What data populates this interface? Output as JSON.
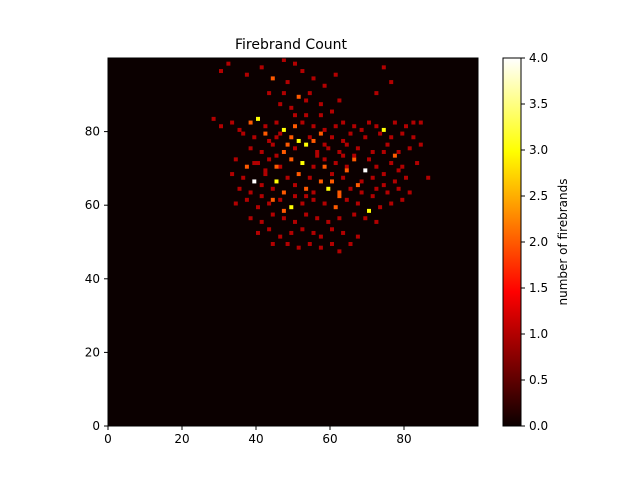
{
  "chart_data": {
    "type": "heatmap",
    "title": "Firebrand Count",
    "xlabel": "",
    "ylabel": "",
    "colorbar_label": "number of firebrands",
    "colormap": "hot",
    "xlim": [
      0,
      100
    ],
    "ylim": [
      0,
      100
    ],
    "grid": false,
    "x_ticks": [
      "0",
      "20",
      "40",
      "60",
      "80"
    ],
    "y_ticks": [
      "0",
      "20",
      "40",
      "60",
      "80"
    ],
    "colorbar_range": [
      0,
      4
    ],
    "colorbar_ticks": [
      "0.0",
      "0.5",
      "1.0",
      "1.5",
      "2.0",
      "2.5",
      "3.0",
      "3.5",
      "4.0"
    ],
    "background_value": 0,
    "cells": [
      [
        32,
        98,
        1
      ],
      [
        30,
        96,
        1
      ],
      [
        47,
        99,
        1
      ],
      [
        50,
        98,
        1
      ],
      [
        41,
        97,
        1
      ],
      [
        37,
        95,
        1
      ],
      [
        44,
        94,
        2
      ],
      [
        48,
        93,
        1
      ],
      [
        52,
        96,
        1
      ],
      [
        55,
        94,
        1
      ],
      [
        58,
        92,
        1
      ],
      [
        61,
        95,
        1
      ],
      [
        43,
        90,
        1
      ],
      [
        47,
        90,
        1
      ],
      [
        51,
        89,
        2
      ],
      [
        54,
        90,
        1
      ],
      [
        46,
        87,
        1
      ],
      [
        49,
        86,
        1
      ],
      [
        53,
        88,
        1
      ],
      [
        57,
        87,
        1
      ],
      [
        62,
        88,
        1
      ],
      [
        74,
        97,
        1
      ],
      [
        76,
        93,
        1
      ],
      [
        72,
        90,
        1
      ],
      [
        28,
        83,
        1
      ],
      [
        30,
        81,
        1
      ],
      [
        33,
        82,
        1
      ],
      [
        35,
        80,
        1
      ],
      [
        38,
        82,
        2
      ],
      [
        40,
        83,
        3
      ],
      [
        42,
        81,
        1
      ],
      [
        45,
        82,
        1
      ],
      [
        47,
        80,
        3
      ],
      [
        50,
        81,
        2
      ],
      [
        52,
        82,
        1
      ],
      [
        55,
        81,
        1
      ],
      [
        58,
        80,
        1
      ],
      [
        61,
        81,
        1
      ],
      [
        63,
        82,
        1
      ],
      [
        66,
        81,
        1
      ],
      [
        68,
        80,
        1
      ],
      [
        70,
        82,
        1
      ],
      [
        72,
        81,
        1
      ],
      [
        74,
        80,
        3
      ],
      [
        77,
        82,
        1
      ],
      [
        80,
        81,
        1
      ],
      [
        82,
        82,
        1
      ],
      [
        84,
        82,
        1
      ],
      [
        36,
        79,
        1
      ],
      [
        39,
        78,
        1
      ],
      [
        43,
        77,
        1
      ],
      [
        46,
        79,
        1
      ],
      [
        49,
        78,
        2
      ],
      [
        51,
        77,
        3
      ],
      [
        54,
        78,
        1
      ],
      [
        57,
        79,
        2
      ],
      [
        60,
        78,
        1
      ],
      [
        63,
        77,
        1
      ],
      [
        65,
        79,
        1
      ],
      [
        69,
        78,
        1
      ],
      [
        73,
        79,
        1
      ],
      [
        76,
        78,
        1
      ],
      [
        79,
        79,
        1
      ],
      [
        82,
        78,
        1
      ],
      [
        38,
        75,
        1
      ],
      [
        41,
        74,
        1
      ],
      [
        44,
        76,
        1
      ],
      [
        47,
        74,
        2
      ],
      [
        50,
        75,
        1
      ],
      [
        53,
        76,
        3
      ],
      [
        56,
        74,
        1
      ],
      [
        59,
        75,
        1
      ],
      [
        62,
        74,
        1
      ],
      [
        64,
        76,
        1
      ],
      [
        67,
        75,
        1
      ],
      [
        71,
        74,
        1
      ],
      [
        75,
        76,
        1
      ],
      [
        78,
        74,
        1
      ],
      [
        81,
        75,
        1
      ],
      [
        84,
        76,
        1
      ],
      [
        34,
        72,
        1
      ],
      [
        37,
        70,
        2
      ],
      [
        40,
        71,
        1
      ],
      [
        43,
        72,
        1
      ],
      [
        46,
        70,
        1
      ],
      [
        49,
        72,
        2
      ],
      [
        52,
        71,
        3
      ],
      [
        55,
        70,
        1
      ],
      [
        58,
        72,
        1
      ],
      [
        61,
        71,
        1
      ],
      [
        64,
        70,
        1
      ],
      [
        66,
        72,
        2
      ],
      [
        69,
        69,
        4
      ],
      [
        72,
        70,
        1
      ],
      [
        76,
        71,
        1
      ],
      [
        79,
        70,
        1
      ],
      [
        83,
        71,
        1
      ],
      [
        86,
        67,
        1
      ],
      [
        33,
        68,
        1
      ],
      [
        36,
        67,
        1
      ],
      [
        39,
        66,
        4
      ],
      [
        42,
        68,
        1
      ],
      [
        45,
        66,
        3
      ],
      [
        48,
        67,
        1
      ],
      [
        51,
        68,
        2
      ],
      [
        54,
        67,
        1
      ],
      [
        57,
        66,
        2
      ],
      [
        60,
        68,
        1
      ],
      [
        63,
        67,
        1
      ],
      [
        68,
        66,
        1
      ],
      [
        71,
        67,
        1
      ],
      [
        74,
        68,
        1
      ],
      [
        77,
        66,
        1
      ],
      [
        80,
        67,
        1
      ],
      [
        35,
        64,
        1
      ],
      [
        38,
        63,
        1
      ],
      [
        41,
        65,
        1
      ],
      [
        44,
        64,
        1
      ],
      [
        47,
        63,
        2
      ],
      [
        50,
        65,
        1
      ],
      [
        53,
        64,
        2
      ],
      [
        55,
        63,
        1
      ],
      [
        59,
        64,
        3
      ],
      [
        62,
        63,
        2
      ],
      [
        65,
        64,
        1
      ],
      [
        68,
        63,
        1
      ],
      [
        72,
        64,
        1
      ],
      [
        75,
        63,
        1
      ],
      [
        78,
        64,
        1
      ],
      [
        81,
        63,
        1
      ],
      [
        34,
        60,
        1
      ],
      [
        37,
        61,
        1
      ],
      [
        40,
        59,
        1
      ],
      [
        43,
        60,
        1
      ],
      [
        46,
        61,
        1
      ],
      [
        49,
        59,
        3
      ],
      [
        52,
        60,
        1
      ],
      [
        55,
        61,
        1
      ],
      [
        58,
        60,
        1
      ],
      [
        61,
        59,
        2
      ],
      [
        64,
        61,
        1
      ],
      [
        67,
        60,
        1
      ],
      [
        70,
        58,
        3
      ],
      [
        73,
        59,
        1
      ],
      [
        76,
        60,
        1
      ],
      [
        79,
        61,
        1
      ],
      [
        38,
        56,
        1
      ],
      [
        41,
        55,
        1
      ],
      [
        44,
        57,
        1
      ],
      [
        47,
        56,
        1
      ],
      [
        50,
        55,
        1
      ],
      [
        53,
        57,
        1
      ],
      [
        56,
        56,
        1
      ],
      [
        59,
        55,
        1
      ],
      [
        62,
        56,
        1
      ],
      [
        66,
        57,
        1
      ],
      [
        69,
        56,
        1
      ],
      [
        72,
        55,
        1
      ],
      [
        40,
        52,
        1
      ],
      [
        43,
        53,
        1
      ],
      [
        46,
        51,
        1
      ],
      [
        49,
        52,
        1
      ],
      [
        52,
        53,
        1
      ],
      [
        55,
        52,
        1
      ],
      [
        57,
        51,
        1
      ],
      [
        60,
        53,
        1
      ],
      [
        63,
        52,
        1
      ],
      [
        67,
        51,
        1
      ],
      [
        44,
        49,
        1
      ],
      [
        48,
        49,
        1
      ],
      [
        51,
        48,
        1
      ],
      [
        54,
        49,
        1
      ],
      [
        57,
        48,
        1
      ],
      [
        60,
        49,
        1
      ],
      [
        62,
        47,
        1
      ],
      [
        65,
        49,
        1
      ],
      [
        45,
        70,
        2
      ],
      [
        48,
        76,
        2
      ],
      [
        56,
        73,
        1
      ],
      [
        58,
        70,
        2
      ],
      [
        63,
        73,
        1
      ],
      [
        60,
        66,
        2
      ],
      [
        62,
        62,
        2
      ],
      [
        64,
        69,
        2
      ],
      [
        66,
        73,
        1
      ],
      [
        70,
        72,
        1
      ],
      [
        74,
        74,
        1
      ],
      [
        77,
        73,
        2
      ],
      [
        78,
        69,
        1
      ],
      [
        74,
        65,
        1
      ],
      [
        71,
        62,
        1
      ],
      [
        67,
        65,
        2
      ],
      [
        53,
        62,
        1
      ],
      [
        50,
        62,
        1
      ],
      [
        47,
        58,
        2
      ],
      [
        44,
        61,
        2
      ],
      [
        41,
        62,
        1
      ],
      [
        42,
        69,
        1
      ],
      [
        45,
        73,
        1
      ],
      [
        39,
        71,
        1
      ],
      [
        57,
        84,
        1
      ],
      [
        60,
        85,
        1
      ],
      [
        53,
        84,
        1
      ],
      [
        50,
        84,
        1
      ],
      [
        55,
        77,
        2
      ],
      [
        58,
        76,
        1
      ],
      [
        45,
        78,
        1
      ],
      [
        42,
        79,
        2
      ]
    ]
  }
}
